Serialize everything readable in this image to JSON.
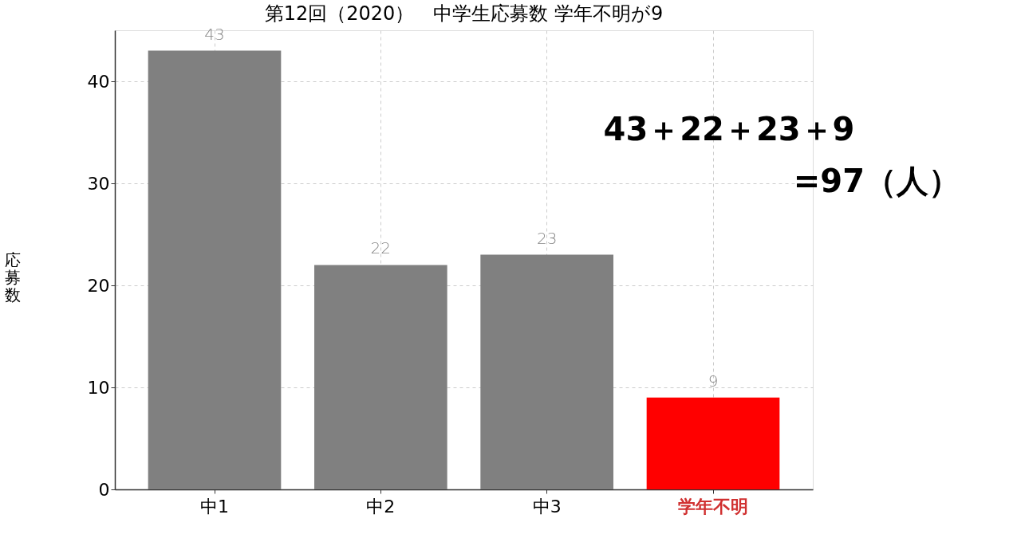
{
  "chart_data": {
    "type": "bar",
    "title": "第12回（2020）　中学生応募数 学年不明が9",
    "ylabel": "応募数",
    "categories": [
      "中1",
      "中2",
      "中3",
      "学年不明"
    ],
    "values": [
      43,
      22,
      23,
      9
    ],
    "colors": [
      "#808080",
      "#808080",
      "#808080",
      "#ff0000"
    ],
    "ylim": [
      0,
      45
    ],
    "yticks": [
      0,
      10,
      20,
      30,
      40
    ],
    "grid": true,
    "data_labels": true,
    "annotations": [
      "43＋22＋23＋9",
      "=97（人）"
    ]
  }
}
